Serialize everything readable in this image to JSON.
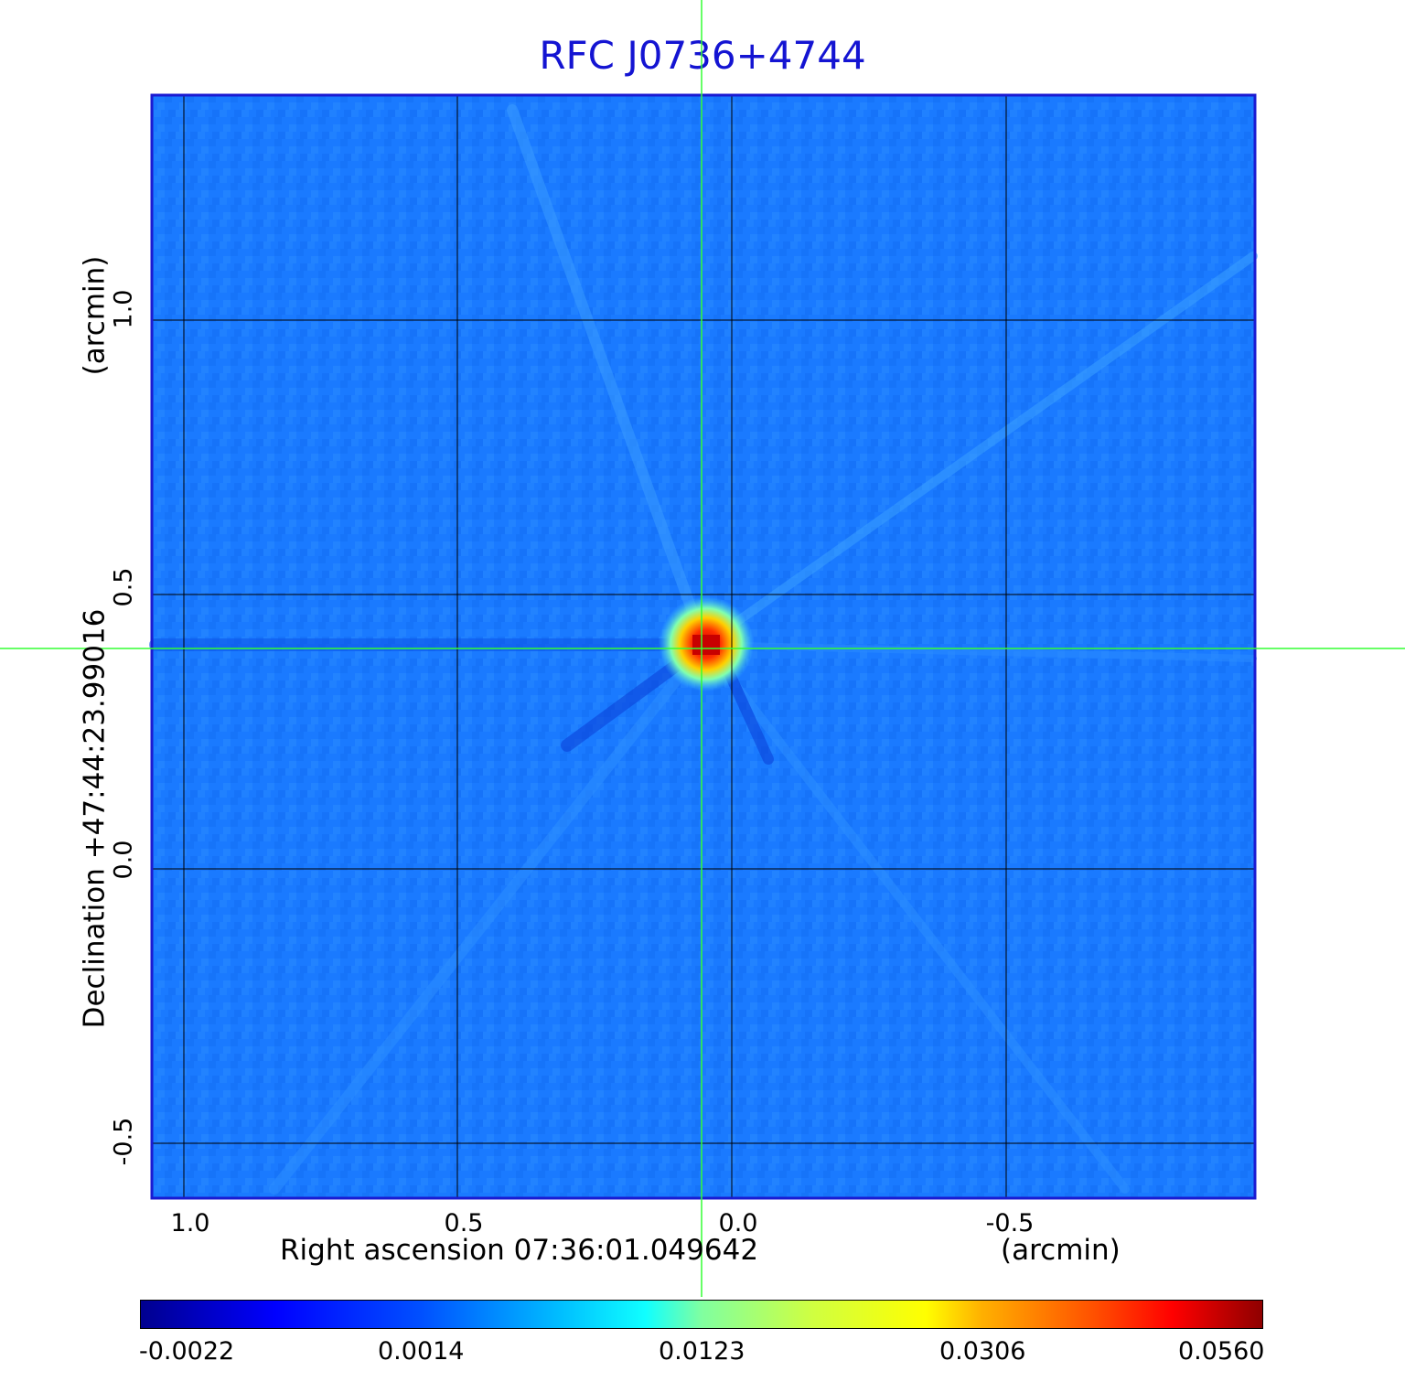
{
  "title": "RFC J0736+4744",
  "x_axis": {
    "label": "Right ascension  07:36:01.049642",
    "unit": "(arcmin)",
    "ticks": [
      "1.0",
      "0.5",
      "0.0",
      "-0.5"
    ]
  },
  "y_axis": {
    "label": "Declination  +47:44:23.99016",
    "unit": "(arcmin)",
    "ticks": [
      "1.0",
      "0.5",
      "0.0",
      "-0.5"
    ]
  },
  "colorbar": {
    "colormap": "jet",
    "ticks": [
      "-0.0022",
      "0.0014",
      "0.0123",
      "0.0306",
      "0.0560"
    ]
  },
  "colors": {
    "title": "#1414d2",
    "frame": "#1a1ad2",
    "crosshair": "#33ff33",
    "background_field": "#1a7aff"
  }
}
